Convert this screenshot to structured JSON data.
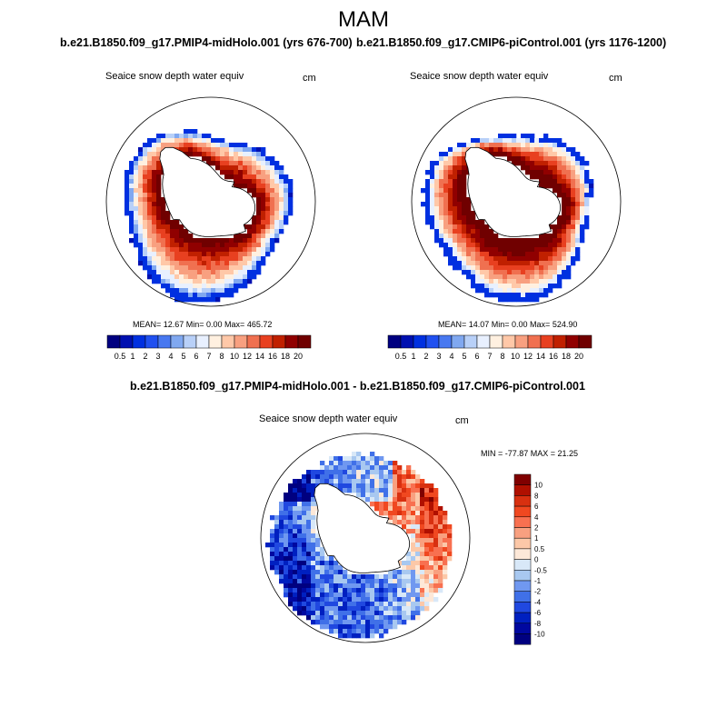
{
  "season": "MAM",
  "left_panel": {
    "title": "b.e21.B1850.f09_g17.PMIP4-midHolo.001 (yrs 676-700)",
    "variable": "Seaice snow depth water equiv",
    "units": "cm",
    "stats": "MEAN=  12.67  Min=    0.00  Max= 465.72"
  },
  "right_panel": {
    "title": "b.e21.B1850.f09_g17.CMIP6-piControl.001 (yrs 1176-1200)",
    "variable": "Seaice snow depth water equiv",
    "units": "cm",
    "stats": "MEAN=  14.07  Min=    0.00  Max= 524.90"
  },
  "diff_panel": {
    "title": "b.e21.B1850.f09_g17.PMIP4-midHolo.001 - b.e21.B1850.f09_g17.CMIP6-piControl.001",
    "variable": "Seaice snow depth water equiv",
    "units": "cm",
    "stats": "MIN = -77.87 MAX =  21.25"
  },
  "abs_colorbar": {
    "labels": [
      "0.5",
      "1",
      "2",
      "3",
      "4",
      "5",
      "6",
      "7",
      "8",
      "10",
      "12",
      "14",
      "16",
      "18",
      "20"
    ],
    "colors": [
      "#000080",
      "#0010b0",
      "#0030e0",
      "#2050f0",
      "#4878f0",
      "#80a8f0",
      "#b8d0f8",
      "#e8f0ff",
      "#fff0e0",
      "#ffc8a8",
      "#f8a080",
      "#f07050",
      "#e84020",
      "#c02000",
      "#900000",
      "#700000"
    ]
  },
  "diff_colorbar": {
    "labels": [
      "10",
      "8",
      "6",
      "4",
      "2",
      "1",
      "0.5",
      "0",
      "-0.5",
      "-1",
      "-2",
      "-4",
      "-6",
      "-8",
      "-10"
    ],
    "colors": [
      "#800000",
      "#b01000",
      "#d83010",
      "#f04820",
      "#f87050",
      "#f8a080",
      "#fcc8a8",
      "#fde8d8",
      "#d8e8f8",
      "#a8c8f0",
      "#7098f0",
      "#4070e8",
      "#2048e0",
      "#0020c0",
      "#0008a0",
      "#000080"
    ]
  },
  "chart_data": [
    {
      "type": "heatmap",
      "title": "b.e21.B1850.f09_g17.PMIP4-midHolo.001 (yrs 676-700)",
      "variable": "Seaice snow depth water equiv",
      "units": "cm",
      "projection": "south polar stereographic",
      "mean": 12.67,
      "min": 0.0,
      "max": 465.72,
      "levels": [
        0.5,
        1,
        2,
        3,
        4,
        5,
        6,
        7,
        8,
        10,
        12,
        14,
        16,
        18,
        20
      ]
    },
    {
      "type": "heatmap",
      "title": "b.e21.B1850.f09_g17.CMIP6-piControl.001 (yrs 1176-1200)",
      "variable": "Seaice snow depth water equiv",
      "units": "cm",
      "projection": "south polar stereographic",
      "mean": 14.07,
      "min": 0.0,
      "max": 524.9,
      "levels": [
        0.5,
        1,
        2,
        3,
        4,
        5,
        6,
        7,
        8,
        10,
        12,
        14,
        16,
        18,
        20
      ]
    },
    {
      "type": "heatmap",
      "title": "b.e21.B1850.f09_g17.PMIP4-midHolo.001 - b.e21.B1850.f09_g17.CMIP6-piControl.001",
      "variable": "Seaice snow depth water equiv",
      "units": "cm",
      "projection": "south polar stereographic",
      "min": -77.87,
      "max": 21.25,
      "levels": [
        -10,
        -8,
        -6,
        -4,
        -2,
        -1,
        -0.5,
        0,
        0.5,
        1,
        2,
        4,
        6,
        8,
        10
      ]
    }
  ]
}
